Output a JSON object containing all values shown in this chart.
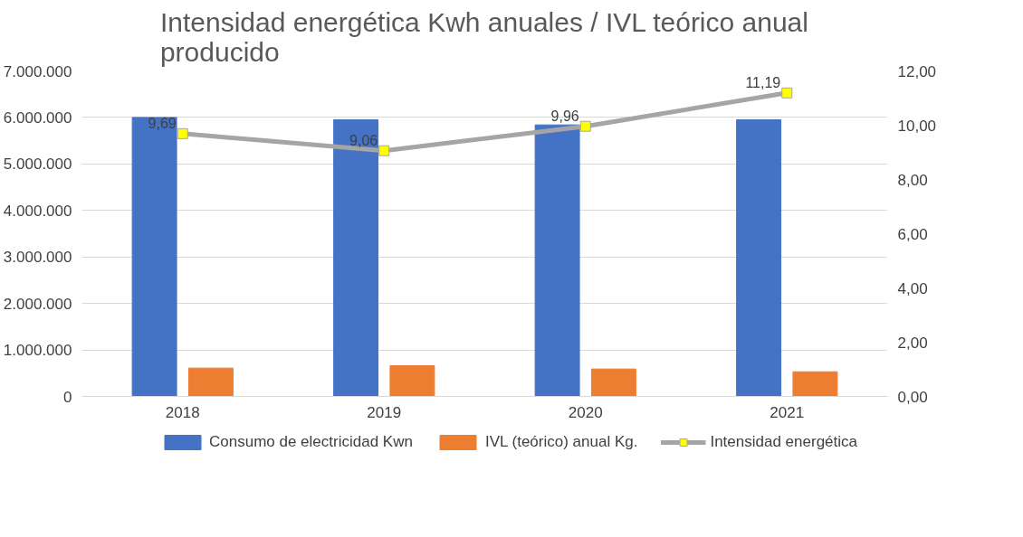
{
  "chart_data": {
    "type": "bar",
    "title": "Intensidad energética Kwh anuales / IVL teórico anual producido",
    "categories": [
      "2018",
      "2019",
      "2020",
      "2021"
    ],
    "series": [
      {
        "name": "Consumo de electricidad Kwn",
        "color": "#4472c4",
        "values": [
          6000000,
          5950000,
          5840000,
          5950000
        ]
      },
      {
        "name": "IVL (teórico) anual Kg.",
        "color": "#ed7d31",
        "values": [
          610000,
          660000,
          590000,
          530000
        ]
      },
      {
        "name": "Intensidad energética",
        "type": "line",
        "axis": "y2",
        "color": "#a5a5a5",
        "marker": "square",
        "values": [
          9.69,
          9.06,
          9.96,
          11.19
        ],
        "value_labels": [
          "9,69",
          "9,06",
          "9,96",
          "11,19"
        ]
      }
    ],
    "ylim": [
      0,
      7000000
    ],
    "yticks": [
      {
        "value": 0,
        "label": "0"
      },
      {
        "value": 1000000,
        "label": "1.000.000"
      },
      {
        "value": 2000000,
        "label": "2.000.000"
      },
      {
        "value": 3000000,
        "label": "3.000.000"
      },
      {
        "value": 4000000,
        "label": "4.000.000"
      },
      {
        "value": 5000000,
        "label": "5.000.000"
      },
      {
        "value": 6000000,
        "label": "6.000.000"
      },
      {
        "value": 7000000,
        "label": "7.000.000"
      }
    ],
    "y2lim": [
      0,
      12
    ],
    "y2ticks": [
      {
        "value": 0,
        "label": "0,00"
      },
      {
        "value": 2,
        "label": "2,00"
      },
      {
        "value": 4,
        "label": "4,00"
      },
      {
        "value": 6,
        "label": "6,00"
      },
      {
        "value": 8,
        "label": "8,00"
      },
      {
        "value": 10,
        "label": "10,00"
      },
      {
        "value": 12,
        "label": "12,00"
      }
    ],
    "grid": "y",
    "legend": "bottom"
  }
}
